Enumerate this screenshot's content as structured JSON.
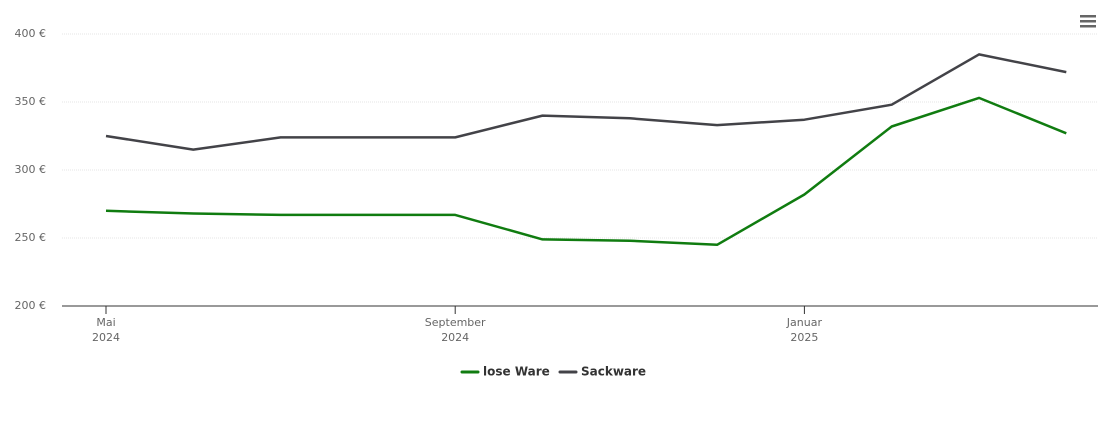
{
  "chart_data": {
    "type": "line",
    "x": [
      "2024-05",
      "2024-06",
      "2024-07",
      "2024-08",
      "2024-09",
      "2024-10",
      "2024-11",
      "2024-12",
      "2025-01",
      "2025-02",
      "2025-03",
      "2025-04"
    ],
    "series": [
      {
        "name": "lose Ware",
        "color": "#107c10",
        "values": [
          270,
          268,
          267,
          267,
          267,
          249,
          248,
          245,
          282,
          332,
          353,
          327
        ]
      },
      {
        "name": "Sackware",
        "color": "#434348",
        "values": [
          325,
          315,
          324,
          324,
          324,
          340,
          338,
          333,
          337,
          348,
          385,
          372
        ]
      }
    ],
    "ylim": [
      200,
      400
    ],
    "yticks": [
      {
        "value": 200,
        "label": "200 €"
      },
      {
        "value": 250,
        "label": "250 €"
      },
      {
        "value": 300,
        "label": "300 €"
      },
      {
        "value": 350,
        "label": "350 €"
      },
      {
        "value": 400,
        "label": "400 €"
      }
    ],
    "xticks": [
      {
        "value": "2024-05",
        "label": "Mai"
      },
      {
        "value": "2024-09",
        "label": "September"
      },
      {
        "value": "2025-01",
        "label": "Januar"
      }
    ],
    "xtick_years": [
      "2024",
      "2024",
      "2025"
    ],
    "grid": true
  }
}
